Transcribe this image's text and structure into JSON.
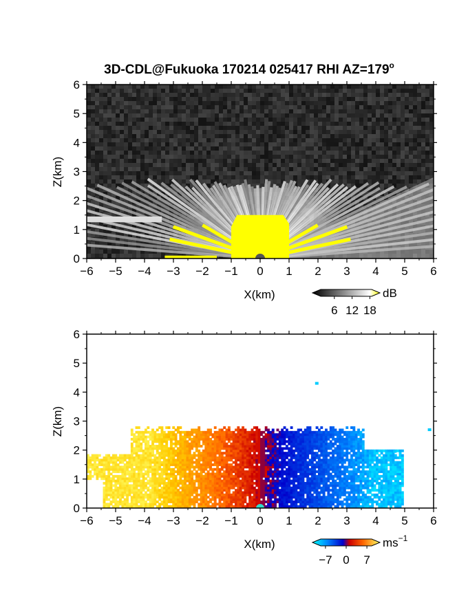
{
  "title": "3D-CDL@Fukuoka 170214 025417 RHI AZ=179",
  "title_degree": "o",
  "chart_data": [
    {
      "type": "heatmap",
      "quantity": "reflectivity",
      "xlabel": "X(km)",
      "ylabel": "Z(km)",
      "xlim": [
        -6,
        6
      ],
      "ylim": [
        0,
        6
      ],
      "xticks": [
        "−6",
        "−5",
        "−4",
        "−3",
        "−2",
        "−1",
        "0",
        "1",
        "2",
        "3",
        "4",
        "5",
        "6"
      ],
      "yticks": [
        "0",
        "1",
        "2",
        "3",
        "4",
        "5",
        "6"
      ],
      "colorbar": {
        "unit": "dB",
        "tick_labels": [
          "6",
          "12",
          "18"
        ],
        "tick_values": [
          6,
          12,
          18
        ],
        "range": [
          0,
          20
        ],
        "colors": [
          "#000000",
          "#ffffff",
          "#ffff00"
        ]
      },
      "features": {
        "strong_echo_top_km": 2.75,
        "saturated_core_x_km": [
          -1.0,
          1.0
        ],
        "saturated_core_top_km": 1.5,
        "elevated_layer_z_km": 1.35,
        "elevated_layer_x_km": [
          -6.0,
          -3.4
        ]
      }
    },
    {
      "type": "heatmap",
      "quantity": "radial velocity",
      "xlabel": "X(km)",
      "ylabel": "Z(km)",
      "xlim": [
        -6,
        6
      ],
      "ylim": [
        0,
        6
      ],
      "xticks": [
        "−6",
        "−5",
        "−4",
        "−3",
        "−2",
        "−1",
        "0",
        "1",
        "2",
        "3",
        "4",
        "5",
        "6"
      ],
      "yticks": [
        "0",
        "1",
        "2",
        "3",
        "4",
        "5",
        "6"
      ],
      "colorbar": {
        "unit": "ms",
        "unit_exponent": "−1",
        "tick_labels": [
          "−7",
          "0",
          "7"
        ],
        "tick_values": [
          -7,
          0,
          7
        ],
        "range": [
          -10,
          10
        ],
        "colors": [
          "#00ffff",
          "#0088ff",
          "#0000cc",
          "#cc0000",
          "#ff6600",
          "#ffcc00",
          "#ffff66"
        ]
      },
      "features": {
        "data_top_km": 2.8,
        "negative_side_x_km": [
          -6.0,
          0.0
        ],
        "positive_side_x_km": [
          0.0,
          4.9
        ],
        "velocity_left_m_s": 7,
        "velocity_right_m_s": -7
      }
    }
  ]
}
